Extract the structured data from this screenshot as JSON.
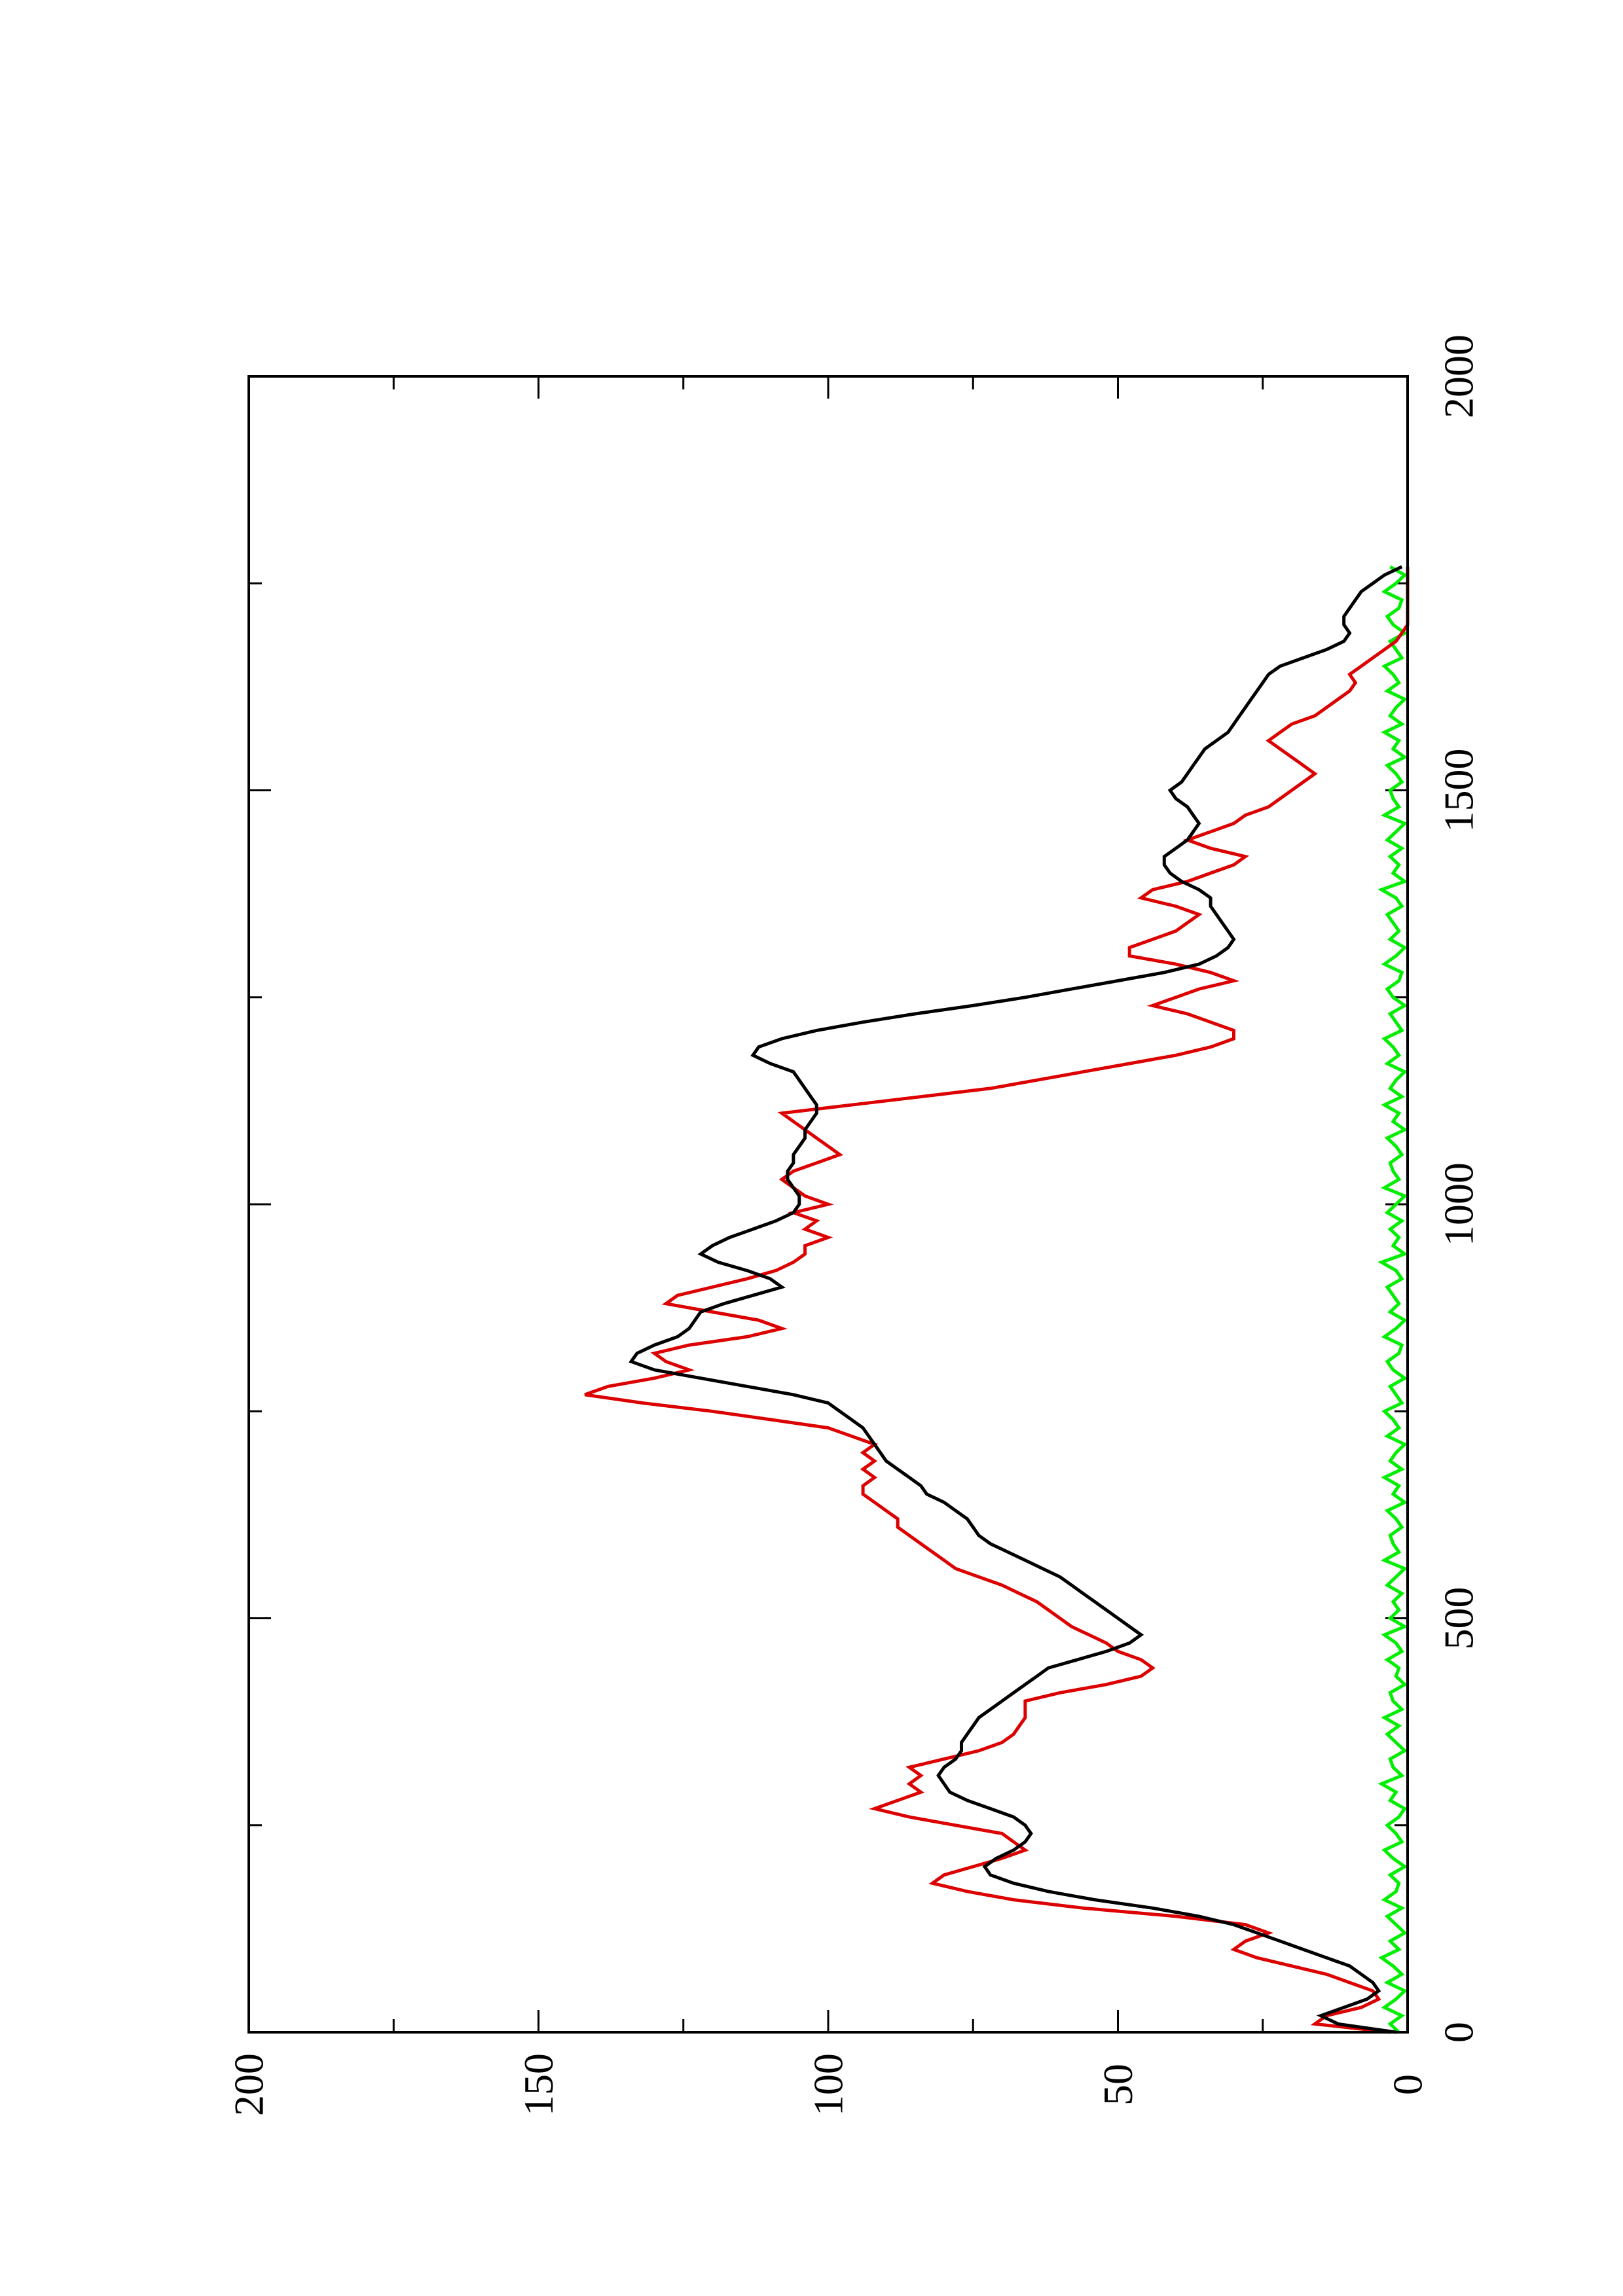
{
  "chart_data": {
    "type": "line",
    "orientation": "rotated-90-ccw",
    "title": "",
    "xlabel": "",
    "ylabel": "",
    "xlim": [
      0,
      2000
    ],
    "ylim": [
      0,
      200
    ],
    "x_ticks": [
      "0",
      "500",
      "1000",
      "1500",
      "2000"
    ],
    "y_ticks": [
      "0",
      "50",
      "100",
      "150",
      "200"
    ],
    "grid": false,
    "legend": "none",
    "series": [
      {
        "color": "#000000",
        "x": [
          0,
          10,
          20,
          30,
          40,
          50,
          60,
          70,
          80,
          90,
          100,
          110,
          120,
          130,
          140,
          150,
          160,
          170,
          180,
          190,
          200,
          210,
          220,
          230,
          240,
          250,
          260,
          270,
          280,
          290,
          300,
          310,
          320,
          330,
          340,
          350,
          360,
          370,
          380,
          390,
          400,
          410,
          420,
          430,
          440,
          450,
          460,
          470,
          480,
          490,
          500,
          510,
          520,
          530,
          540,
          550,
          560,
          570,
          580,
          590,
          600,
          610,
          620,
          630,
          640,
          650,
          660,
          670,
          680,
          690,
          700,
          710,
          720,
          730,
          740,
          750,
          760,
          770,
          780,
          790,
          800,
          810,
          820,
          830,
          840,
          850,
          860,
          870,
          880,
          890,
          900,
          910,
          920,
          930,
          940,
          950,
          960,
          970,
          980,
          990,
          1000,
          1010,
          1020,
          1030,
          1040,
          1050,
          1060,
          1070,
          1080,
          1090,
          1100,
          1110,
          1120,
          1130,
          1140,
          1150,
          1160,
          1170,
          1180,
          1190,
          1200,
          1210,
          1220,
          1230,
          1240,
          1250,
          1260,
          1270,
          1280,
          1290,
          1300,
          1310,
          1320,
          1330,
          1340,
          1350,
          1360,
          1370,
          1380,
          1390,
          1400,
          1410,
          1420,
          1430,
          1440,
          1450,
          1460,
          1470,
          1480,
          1490,
          1500,
          1510,
          1520,
          1530,
          1540,
          1550,
          1560,
          1570,
          1580,
          1590,
          1600,
          1610,
          1620,
          1630,
          1640,
          1650,
          1660,
          1670,
          1680,
          1690,
          1700,
          1710,
          1720,
          1730,
          1740,
          1750,
          1760,
          1770
        ],
        "y": [
          2,
          12,
          15,
          11,
          7,
          5,
          6,
          8,
          10,
          14,
          18,
          22,
          26,
          30,
          36,
          44,
          54,
          62,
          68,
          72,
          73,
          71,
          68,
          66,
          65,
          66,
          68,
          72,
          76,
          79,
          80,
          81,
          80,
          78,
          77,
          77,
          76,
          75,
          74,
          72,
          70,
          68,
          66,
          64,
          62,
          57,
          52,
          48,
          46,
          48,
          50,
          52,
          54,
          56,
          58,
          60,
          63,
          66,
          69,
          72,
          74,
          75,
          76,
          78,
          80,
          83,
          84,
          86,
          88,
          90,
          91,
          92,
          93,
          94,
          96,
          98,
          100,
          106,
          114,
          122,
          130,
          134,
          133,
          130,
          126,
          124,
          123,
          122,
          118,
          113,
          108,
          110,
          114,
          119,
          122,
          120,
          117,
          113,
          109,
          106,
          105,
          105,
          106,
          107,
          107,
          106,
          106,
          105,
          104,
          104,
          103,
          102,
          102,
          103,
          104,
          105,
          106,
          110,
          113,
          112,
          108,
          102,
          94,
          85,
          75,
          66,
          58,
          50,
          42,
          36,
          33,
          31,
          30,
          31,
          32,
          33,
          34,
          34,
          36,
          39,
          41,
          42,
          42,
          40,
          38,
          37,
          36,
          37,
          38,
          40,
          41,
          39,
          38,
          37,
          36,
          35,
          33,
          31,
          30,
          29,
          28,
          27,
          26,
          25,
          24,
          22,
          18,
          14,
          11,
          10,
          11,
          11,
          10,
          9,
          8,
          6,
          4,
          1
        ]
      },
      {
        "color": "#dd0000",
        "x": [
          0,
          10,
          20,
          30,
          40,
          50,
          60,
          70,
          80,
          90,
          100,
          110,
          120,
          130,
          140,
          150,
          160,
          170,
          180,
          190,
          200,
          210,
          220,
          230,
          240,
          250,
          260,
          270,
          280,
          290,
          300,
          310,
          320,
          330,
          340,
          350,
          360,
          370,
          380,
          390,
          400,
          410,
          420,
          430,
          440,
          450,
          460,
          470,
          480,
          490,
          500,
          510,
          520,
          530,
          540,
          550,
          560,
          570,
          580,
          590,
          600,
          610,
          620,
          630,
          640,
          650,
          660,
          670,
          680,
          690,
          700,
          710,
          720,
          730,
          740,
          750,
          760,
          770,
          780,
          790,
          800,
          810,
          820,
          830,
          840,
          850,
          860,
          870,
          880,
          890,
          900,
          910,
          920,
          930,
          940,
          950,
          960,
          970,
          980,
          990,
          1000,
          1010,
          1020,
          1030,
          1040,
          1050,
          1060,
          1070,
          1080,
          1090,
          1100,
          1110,
          1120,
          1130,
          1140,
          1150,
          1160,
          1170,
          1180,
          1190,
          1200,
          1210,
          1220,
          1230,
          1240,
          1250,
          1260,
          1270,
          1280,
          1290,
          1300,
          1310,
          1320,
          1330,
          1340,
          1350,
          1360,
          1370,
          1380,
          1390,
          1400,
          1410,
          1420,
          1430,
          1440,
          1450,
          1460,
          1470,
          1480,
          1490,
          1500,
          1510,
          1520,
          1530,
          1540,
          1550,
          1560,
          1570,
          1580,
          1590,
          1600,
          1610,
          1620,
          1630,
          1640,
          1650,
          1660,
          1670,
          1680,
          1690,
          1700,
          1710,
          1720,
          1730,
          1740,
          1750,
          1760,
          1770
        ],
        "y": [
          3,
          16,
          14,
          8,
          5,
          6,
          10,
          14,
          20,
          26,
          30,
          28,
          24,
          28,
          40,
          56,
          68,
          76,
          82,
          80,
          75,
          70,
          66,
          68,
          70,
          78,
          86,
          92,
          88,
          84,
          86,
          84,
          86,
          80,
          74,
          70,
          68,
          67,
          66,
          66,
          66,
          60,
          52,
          46,
          44,
          46,
          50,
          52,
          55,
          58,
          60,
          62,
          64,
          67,
          70,
          74,
          78,
          80,
          82,
          84,
          86,
          88,
          88,
          90,
          92,
          94,
          94,
          92,
          94,
          92,
          94,
          92,
          96,
          100,
          110,
          120,
          132,
          142,
          138,
          130,
          124,
          128,
          130,
          124,
          114,
          108,
          112,
          120,
          128,
          126,
          120,
          114,
          109,
          106,
          104,
          104,
          100,
          104,
          102,
          106,
          100,
          104,
          106,
          108,
          106,
          102,
          98,
          100,
          102,
          104,
          106,
          108,
          96,
          84,
          72,
          64,
          56,
          48,
          40,
          34,
          30,
          30,
          34,
          38,
          44,
          40,
          36,
          30,
          34,
          40,
          48,
          48,
          44,
          40,
          38,
          36,
          40,
          46,
          44,
          38,
          34,
          30,
          28,
          34,
          38,
          34,
          30,
          28,
          24,
          22,
          20,
          18,
          16,
          18,
          20,
          22,
          24,
          22,
          20,
          16,
          14,
          12,
          10,
          9,
          10,
          8,
          6,
          4,
          2,
          1,
          0,
          0,
          0,
          0,
          0,
          0,
          0,
          0
        ]
      },
      {
        "color": "#00ee00",
        "x": [
          0,
          10,
          20,
          30,
          40,
          50,
          60,
          70,
          80,
          90,
          100,
          110,
          120,
          130,
          140,
          150,
          160,
          170,
          180,
          190,
          200,
          210,
          220,
          230,
          240,
          250,
          260,
          270,
          280,
          290,
          300,
          310,
          320,
          330,
          340,
          350,
          360,
          370,
          380,
          390,
          400,
          410,
          420,
          430,
          440,
          450,
          460,
          470,
          480,
          490,
          500,
          510,
          520,
          530,
          540,
          550,
          560,
          570,
          580,
          590,
          600,
          610,
          620,
          630,
          640,
          650,
          660,
          670,
          680,
          690,
          700,
          710,
          720,
          730,
          740,
          750,
          760,
          770,
          780,
          790,
          800,
          810,
          820,
          830,
          840,
          850,
          860,
          870,
          880,
          890,
          900,
          910,
          920,
          930,
          940,
          950,
          960,
          970,
          980,
          990,
          1000,
          1010,
          1020,
          1030,
          1040,
          1050,
          1060,
          1070,
          1080,
          1090,
          1100,
          1110,
          1120,
          1130,
          1140,
          1150,
          1160,
          1170,
          1180,
          1190,
          1200,
          1210,
          1220,
          1230,
          1240,
          1250,
          1260,
          1270,
          1280,
          1290,
          1300,
          1310,
          1320,
          1330,
          1340,
          1350,
          1360,
          1370,
          1380,
          1390,
          1400,
          1410,
          1420,
          1430,
          1440,
          1450,
          1460,
          1470,
          1480,
          1490,
          1500,
          1510,
          1520,
          1530,
          1540,
          1550,
          1560,
          1570,
          1580,
          1590,
          1600,
          1610,
          1620,
          1630,
          1640,
          1650,
          1660,
          1670,
          1680,
          1690,
          1700,
          1710,
          1720,
          1730,
          1740,
          1750,
          1760,
          1770
        ],
        "y": [
          1.5,
          3.0,
          1.0,
          4.0,
          2.0,
          0.5,
          3.5,
          1.0,
          2.5,
          4.5,
          1.5,
          3.0,
          0.5,
          2.0,
          3.5,
          1.0,
          4.0,
          2.0,
          1.5,
          3.0,
          0.5,
          2.5,
          4.0,
          1.0,
          2.0,
          3.5,
          1.5,
          0.5,
          3.0,
          2.0,
          4.5,
          1.0,
          2.5,
          3.0,
          0.5,
          2.0,
          3.5,
          1.5,
          4.0,
          1.0,
          2.5,
          3.0,
          0.5,
          2.0,
          1.5,
          3.5,
          1.0,
          2.0,
          4.0,
          0.5,
          3.0,
          1.5,
          2.5,
          1.0,
          3.5,
          2.0,
          0.5,
          4.0,
          1.5,
          2.5,
          3.0,
          1.0,
          2.0,
          3.5,
          0.5,
          2.5,
          1.5,
          4.0,
          1.0,
          3.0,
          2.0,
          0.5,
          3.5,
          1.5,
          2.5,
          4.0,
          1.0,
          2.0,
          3.0,
          0.5,
          2.5,
          3.5,
          1.5,
          1.0,
          4.0,
          2.0,
          0.5,
          3.0,
          1.5,
          2.5,
          3.5,
          1.0,
          2.0,
          4.5,
          0.5,
          2.5,
          1.5,
          3.0,
          1.0,
          3.5,
          2.0,
          0.5,
          4.0,
          1.5,
          2.5,
          3.0,
          1.0,
          2.0,
          3.5,
          0.5,
          2.5,
          1.5,
          4.0,
          1.0,
          3.0,
          2.0,
          0.5,
          3.5,
          1.5,
          2.5,
          4.0,
          1.0,
          2.0,
          3.0,
          0.5,
          2.5,
          3.5,
          1.5,
          1.0,
          4.0,
          2.0,
          0.5,
          3.0,
          1.5,
          2.5,
          3.5,
          1.0,
          2.0,
          4.5,
          0.5,
          2.5,
          1.5,
          3.0,
          1.0,
          3.5,
          2.0,
          0.5,
          4.0,
          1.5,
          2.5,
          3.0,
          1.0,
          2.0,
          3.5,
          0.5,
          2.5,
          1.5,
          4.0,
          1.0,
          3.0,
          2.0,
          0.5,
          3.5,
          1.5,
          2.5,
          4.0,
          1.0,
          2.0,
          3.0,
          0.5,
          2.5,
          3.5,
          1.5,
          1.0,
          4.0,
          2.0,
          0.5,
          3.0
        ]
      }
    ]
  }
}
